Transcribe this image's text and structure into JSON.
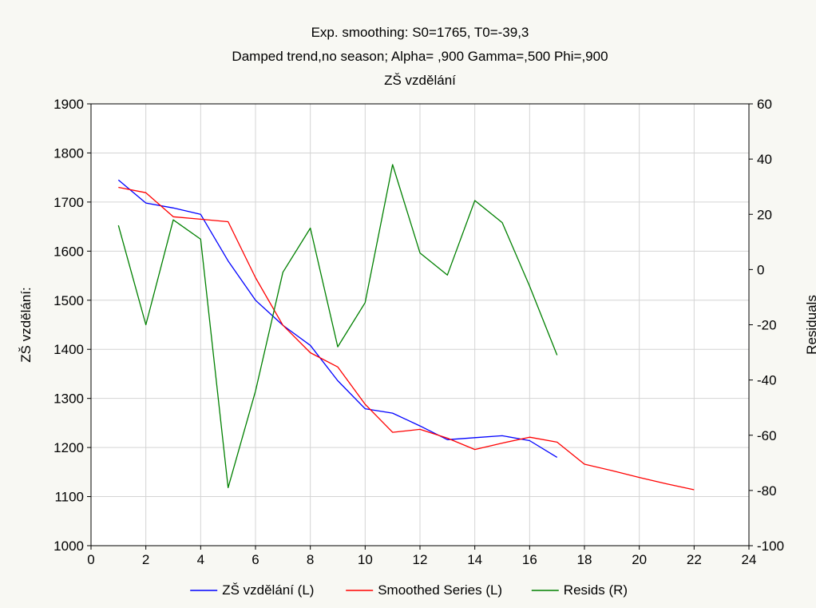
{
  "chart_data": {
    "type": "line",
    "title_lines": [
      "Exp. smoothing:  S0=1765, T0=-39,3",
      "Damped trend,no season; Alpha=  ,900 Gamma=,500 Phi=,900",
      "ZŠ vzdělání"
    ],
    "xlabel": "",
    "ylabel_left": "ZŠ vzdělání:",
    "ylabel_right": "Residuals",
    "xlim": [
      0,
      24
    ],
    "ylim_left": [
      1000,
      1900
    ],
    "ylim_right": [
      -100,
      60
    ],
    "x_ticks": [
      0,
      2,
      4,
      6,
      8,
      10,
      12,
      14,
      16,
      18,
      20,
      22,
      24
    ],
    "y_left_ticks": [
      1000,
      1100,
      1200,
      1300,
      1400,
      1500,
      1600,
      1700,
      1800,
      1900
    ],
    "y_right_ticks": [
      -100,
      -80,
      -60,
      -40,
      -20,
      0,
      20,
      40,
      60
    ],
    "grid": true,
    "legend_position": "bottom",
    "series": [
      {
        "name": "ZŠ vzdělání (L)",
        "axis": "left",
        "color": "#0000ff",
        "x": [
          1,
          2,
          3,
          4,
          5,
          6,
          7,
          8,
          9,
          10,
          11,
          12,
          13,
          14,
          15,
          16,
          17
        ],
        "values": [
          1745,
          1698,
          1688,
          1675,
          1580,
          1500,
          1449,
          1408,
          1336,
          1279,
          1270,
          1244,
          1216,
          1220,
          1224,
          1214,
          1180
        ]
      },
      {
        "name": "Smoothed Series (L)",
        "axis": "left",
        "color": "#ff0000",
        "x": [
          1,
          2,
          3,
          4,
          5,
          6,
          7,
          8,
          9,
          10,
          11,
          12,
          13,
          14,
          15,
          16,
          17,
          18,
          19,
          20,
          21,
          22
        ],
        "values": [
          1730,
          1719,
          1670,
          1665,
          1660,
          1546,
          1449,
          1393,
          1364,
          1288,
          1231,
          1237,
          1219,
          1196,
          1209,
          1221,
          1211,
          1166,
          1153,
          1139,
          1126,
          1114
        ]
      },
      {
        "name": "Resids (R)",
        "axis": "right",
        "color": "#008000",
        "x": [
          1,
          2,
          3,
          4,
          5,
          6,
          7,
          8,
          9,
          10,
          11,
          12,
          13,
          14,
          15,
          16,
          17
        ],
        "values": [
          16,
          -20,
          18,
          11,
          -79,
          -44,
          -1,
          15,
          -28,
          -12,
          38,
          6,
          -2,
          25,
          17,
          -6,
          -31
        ]
      }
    ]
  }
}
